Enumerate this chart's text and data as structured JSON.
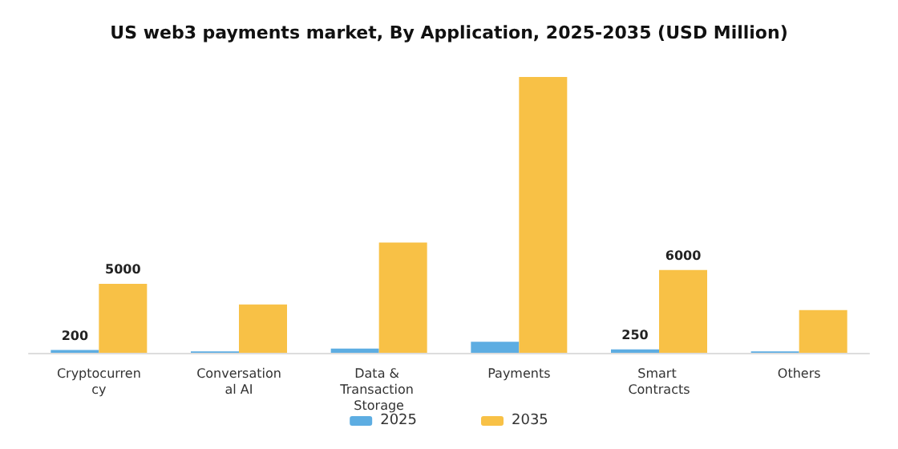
{
  "chart_data": {
    "type": "bar",
    "title": "US web3 payments market, By Application, 2025-2035 (USD Million)",
    "categories": [
      "Cryptocurrency",
      "Conversational AI",
      "Data & Transaction Storage",
      "Payments",
      "Smart Contracts",
      "Others"
    ],
    "series": [
      {
        "name": "2025",
        "color": "#5dade2",
        "values": [
          200,
          100,
          300,
          800,
          250,
          100
        ],
        "value_labels": [
          "200",
          null,
          null,
          null,
          "250",
          null
        ]
      },
      {
        "name": "2035",
        "color": "#f8c146",
        "values": [
          5000,
          3500,
          8000,
          20000,
          6000,
          3100
        ],
        "value_labels": [
          "5000",
          null,
          null,
          null,
          "6000",
          null
        ]
      }
    ],
    "legend": "bottom",
    "grid": false
  }
}
